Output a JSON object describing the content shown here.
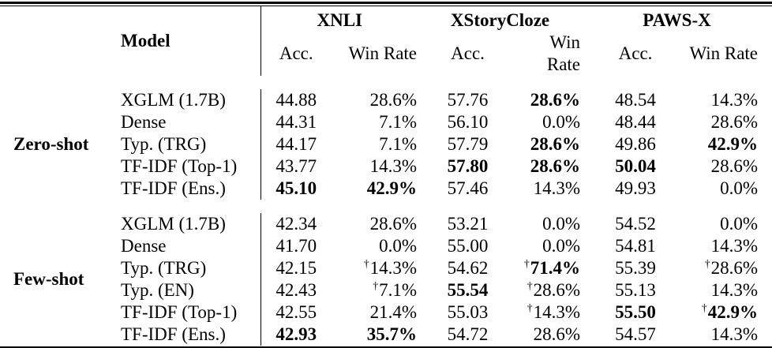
{
  "table": {
    "header": {
      "model_label": "Model",
      "acc_label": "Acc.",
      "win_label": "Win Rate",
      "groups": [
        {
          "label": "XNLI"
        },
        {
          "label": "XStoryCloze"
        },
        {
          "label": "PAWS-X"
        }
      ]
    },
    "sections": [
      {
        "label": "Zero-shot",
        "rows": [
          {
            "model": "XGLM (1.7B)",
            "a1": "44.88",
            "d1": "",
            "w1": "28.6%",
            "a2": "57.76",
            "d2": "",
            "w2": "28.6%",
            "a3": "48.54",
            "d3": "",
            "w3": "14.3%"
          },
          {
            "model": "Dense",
            "a1": "44.31",
            "d1": "",
            "w1": "7.1%",
            "a2": "56.10",
            "d2": "",
            "w2": "0.0%",
            "a3": "48.44",
            "d3": "",
            "w3": "28.6%"
          },
          {
            "model": "Typ. (TRG)",
            "a1": "44.17",
            "d1": "",
            "w1": "7.1%",
            "a2": "57.79",
            "d2": "",
            "w2": "28.6%",
            "a3": "49.86",
            "d3": "",
            "w3": "42.9%"
          },
          {
            "model": "TF-IDF (Top-1)",
            "a1": "43.77",
            "d1": "",
            "w1": "14.3%",
            "a2": "57.80",
            "d2": "",
            "w2": "28.6%",
            "a3": "50.04",
            "d3": "",
            "w3": "28.6%"
          },
          {
            "model": "TF-IDF (Ens.)",
            "a1": "45.10",
            "d1": "",
            "w1": "42.9%",
            "a2": "57.46",
            "d2": "",
            "w2": "14.3%",
            "a3": "49.93",
            "d3": "",
            "w3": "0.0%"
          }
        ]
      },
      {
        "label": "Few-shot",
        "rows": [
          {
            "model": "XGLM (1.7B)",
            "a1": "42.34",
            "d1": "",
            "w1": "28.6%",
            "a2": "53.21",
            "d2": "",
            "w2": "0.0%",
            "a3": "54.52",
            "d3": "",
            "w3": "0.0%"
          },
          {
            "model": "Dense",
            "a1": "41.70",
            "d1": "",
            "w1": "0.0%",
            "a2": "55.00",
            "d2": "",
            "w2": "0.0%",
            "a3": "54.81",
            "d3": "",
            "w3": "14.3%"
          },
          {
            "model": "Typ. (TRG)",
            "a1": "42.15",
            "d1": "†",
            "w1": "14.3%",
            "a2": "54.62",
            "d2": "†",
            "w2": "71.4%",
            "a3": "55.39",
            "d3": "†",
            "w3": "28.6%"
          },
          {
            "model": "Typ. (EN)",
            "a1": "42.43",
            "d1": "†",
            "w1": "7.1%",
            "a2": "55.54",
            "d2": "†",
            "w2": "28.6%",
            "a3": "55.13",
            "d3": "",
            "w3": "14.3%"
          },
          {
            "model": "TF-IDF (Top-1)",
            "a1": "42.55",
            "d1": "",
            "w1": "21.4%",
            "a2": "55.03",
            "d2": "†",
            "w2": "14.3%",
            "a3": "55.50",
            "d3": "†",
            "w3": "42.9%"
          },
          {
            "model": "TF-IDF (Ens.)",
            "a1": "42.93",
            "d1": "",
            "w1": "35.7%",
            "a2": "54.72",
            "d2": "",
            "w2": "28.6%",
            "a3": "54.57",
            "d3": "",
            "w3": "14.3%"
          }
        ]
      }
    ]
  }
}
